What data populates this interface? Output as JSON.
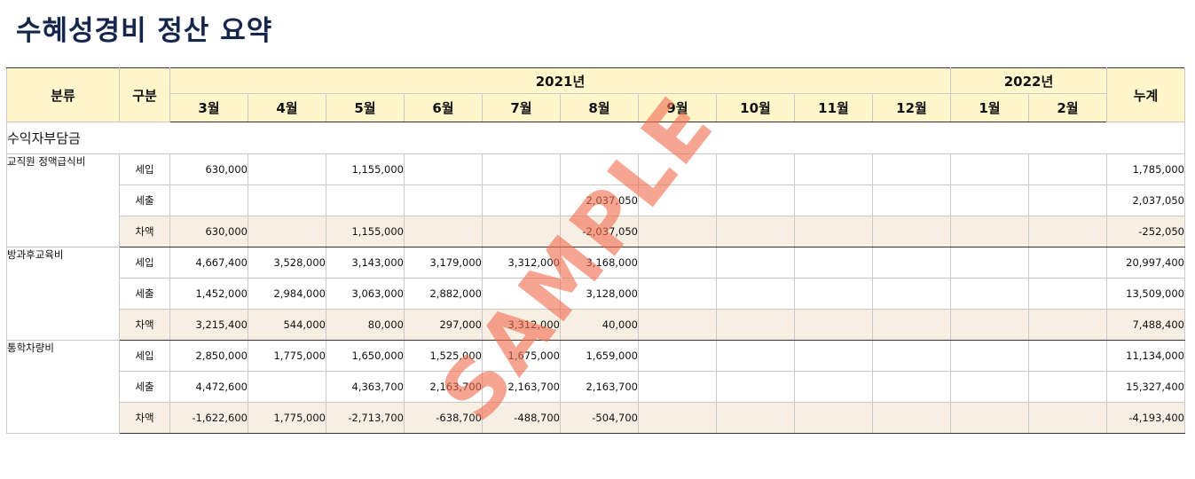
{
  "title": "수혜성경비 정산 요약",
  "header": {
    "category": "분류",
    "gubun": "구분",
    "year2021": "2021년",
    "year2022": "2022년",
    "total": "누계",
    "months": [
      "3월",
      "4월",
      "5월",
      "6월",
      "7월",
      "8월",
      "9월",
      "10월",
      "11월",
      "12월",
      "1월",
      "2월"
    ]
  },
  "section": "수익자부담금",
  "groups": [
    {
      "name": "교직원 정액급식비",
      "rows": [
        {
          "kind": "세입",
          "values": [
            "630,000",
            "",
            "1,155,000",
            "",
            "",
            "",
            "",
            "",
            "",
            "",
            "",
            ""
          ],
          "total": "1,785,000"
        },
        {
          "kind": "세출",
          "values": [
            "",
            "",
            "",
            "",
            "",
            "2,037,050",
            "",
            "",
            "",
            "",
            "",
            ""
          ],
          "total": "2,037,050"
        },
        {
          "kind": "차액",
          "values": [
            "630,000",
            "",
            "1,155,000",
            "",
            "",
            "-2,037,050",
            "",
            "",
            "",
            "",
            "",
            ""
          ],
          "total": "-252,050"
        }
      ]
    },
    {
      "name": "방과후교육비",
      "rows": [
        {
          "kind": "세입",
          "values": [
            "4,667,400",
            "3,528,000",
            "3,143,000",
            "3,179,000",
            "3,312,000",
            "3,168,000",
            "",
            "",
            "",
            "",
            "",
            ""
          ],
          "total": "20,997,400"
        },
        {
          "kind": "세출",
          "values": [
            "1,452,000",
            "2,984,000",
            "3,063,000",
            "2,882,000",
            "",
            "3,128,000",
            "",
            "",
            "",
            "",
            "",
            ""
          ],
          "total": "13,509,000"
        },
        {
          "kind": "차액",
          "values": [
            "3,215,400",
            "544,000",
            "80,000",
            "297,000",
            "3,312,000",
            "40,000",
            "",
            "",
            "",
            "",
            "",
            ""
          ],
          "total": "7,488,400"
        }
      ]
    },
    {
      "name": "통학차량비",
      "rows": [
        {
          "kind": "세입",
          "values": [
            "2,850,000",
            "1,775,000",
            "1,650,000",
            "1,525,000",
            "1,675,000",
            "1,659,000",
            "",
            "",
            "",
            "",
            "",
            ""
          ],
          "total": "11,134,000"
        },
        {
          "kind": "세출",
          "values": [
            "4,472,600",
            "",
            "4,363,700",
            "2,163,700",
            "2,163,700",
            "2,163,700",
            "",
            "",
            "",
            "",
            "",
            ""
          ],
          "total": "15,327,400"
        },
        {
          "kind": "차액",
          "values": [
            "-1,622,600",
            "1,775,000",
            "-2,713,700",
            "-638,700",
            "-488,700",
            "-504,700",
            "",
            "",
            "",
            "",
            "",
            ""
          ],
          "total": "-4,193,400"
        }
      ]
    }
  ],
  "watermark": "SAMPLE"
}
